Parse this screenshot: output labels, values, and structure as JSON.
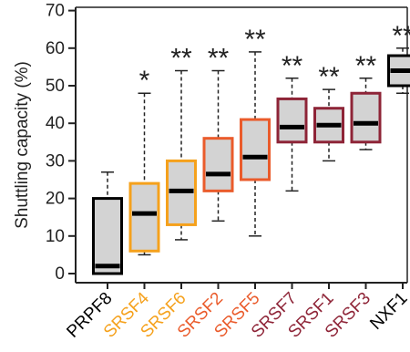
{
  "chart_data": {
    "type": "boxplot",
    "title": "",
    "xlabel": "",
    "ylabel": "Shuttling capacity (%)",
    "ylim": [
      -2,
      72
    ],
    "yticks": [
      0,
      10,
      20,
      30,
      40,
      50,
      60,
      70
    ],
    "grid": false,
    "legend": "none",
    "categories": [
      "PRPF8",
      "SRSF4",
      "SRSF6",
      "SRSF2",
      "SRSF5",
      "SRSF7",
      "SRSF1",
      "SRSF3",
      "NXF1"
    ],
    "label_colors": [
      "#000000",
      "#f5a11c",
      "#f5a11c",
      "#ea5b2b",
      "#ea5b2b",
      "#8e2437",
      "#8e2437",
      "#8e2437",
      "#000000"
    ],
    "box_colors": [
      "#000000",
      "#f5a11c",
      "#f5a11c",
      "#ea5b2b",
      "#ea5b2b",
      "#8e2437",
      "#8e2437",
      "#8e2437",
      "#000000"
    ],
    "box_fill": "#d3d3d3",
    "boxes": [
      {
        "min": 0,
        "q1": 0,
        "median": 2,
        "q3": 20,
        "max": 27
      },
      {
        "min": 5,
        "q1": 6,
        "median": 16,
        "q3": 24,
        "max": 48
      },
      {
        "min": 9,
        "q1": 13,
        "median": 22,
        "q3": 30,
        "max": 54
      },
      {
        "min": 14,
        "q1": 22,
        "median": 26.5,
        "q3": 36,
        "max": 54
      },
      {
        "min": 10,
        "q1": 25,
        "median": 31,
        "q3": 41,
        "max": 59
      },
      {
        "min": 22,
        "q1": 35,
        "median": 39,
        "q3": 46.5,
        "max": 52
      },
      {
        "min": 30,
        "q1": 35,
        "median": 39.5,
        "q3": 44,
        "max": 49
      },
      {
        "min": 33,
        "q1": 35,
        "median": 40,
        "q3": 48,
        "max": 52
      },
      {
        "min": 48,
        "q1": 50,
        "median": 54,
        "q3": 58,
        "max": 60
      }
    ],
    "significance": [
      "",
      "*",
      "**",
      "**",
      "**",
      "**",
      "**",
      "**",
      "**"
    ]
  }
}
